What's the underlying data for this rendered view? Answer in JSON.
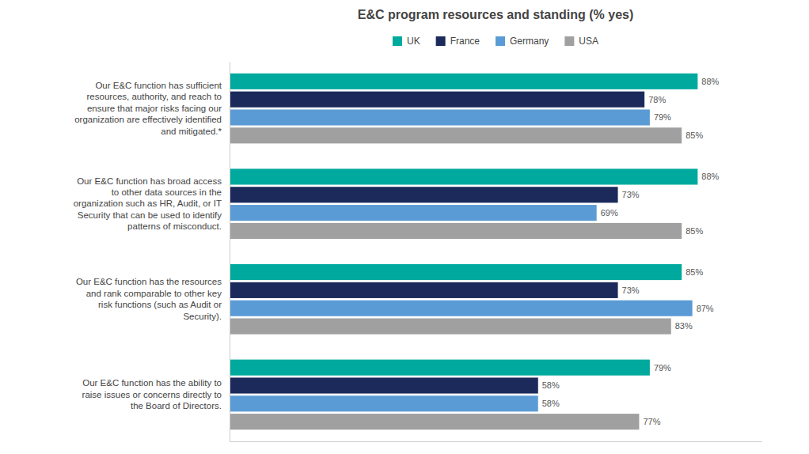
{
  "chart_data": {
    "type": "bar",
    "orientation": "horizontal",
    "title": "E&C program resources and standing (% yes)",
    "categories": [
      "Our E&C function has sufficient\nresources, authority, and reach to\nensure that major risks facing our\norganization are effectively identified\nand mitigated.*",
      "Our E&C function has broad access\nto other data sources in the\norganization such as HR, Audit, or IT\nSecurity that can be used to identify\npatterns of misconduct.",
      "Our E&C function has the resources\nand rank comparable to other key\nrisk functions (such as Audit or\nSecurity).",
      "Our E&C function has the ability to\nraise issues or concerns directly to\nthe Board of Directors."
    ],
    "series": [
      {
        "name": "UK",
        "color": "#00A99D",
        "values": [
          88,
          88,
          85,
          79
        ],
        "value_labels": [
          "88%",
          "88%",
          "85%",
          "79%"
        ]
      },
      {
        "name": "France",
        "color": "#1B2A5A",
        "values": [
          78,
          73,
          73,
          58
        ],
        "value_labels": [
          "78%",
          "73%",
          "73%",
          "58%"
        ]
      },
      {
        "name": "Germany",
        "color": "#5B9BD5",
        "values": [
          79,
          69,
          87,
          58
        ],
        "value_labels": [
          "79%",
          "69%",
          "87%",
          "58%"
        ]
      },
      {
        "name": "USA",
        "color": "#A0A0A0",
        "values": [
          85,
          85,
          83,
          77
        ],
        "value_labels": [
          "85%",
          "85%",
          "83%",
          "77%"
        ]
      }
    ],
    "xlim": [
      0,
      100
    ],
    "data_labels": true,
    "tick_labels": "y",
    "legend": "top",
    "grid": false
  }
}
